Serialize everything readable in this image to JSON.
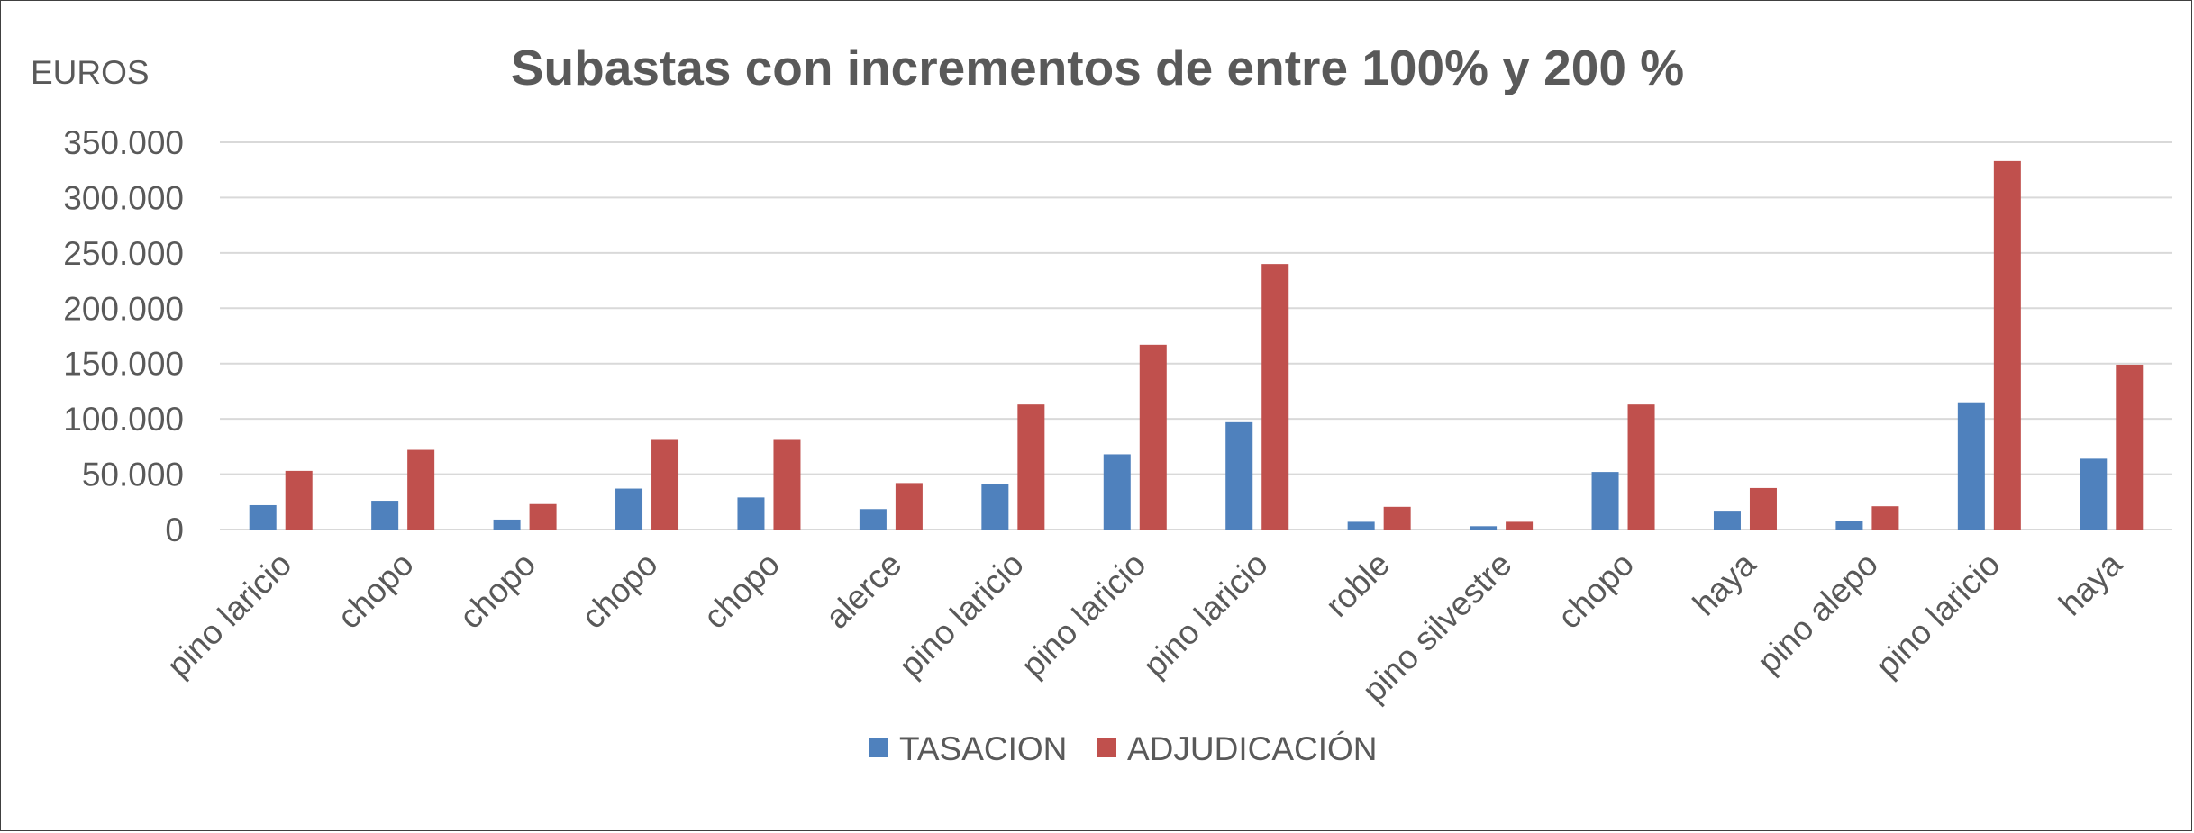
{
  "chart_data": {
    "type": "bar",
    "title": "Subastas con incrementos de entre 100% y 200 %",
    "unit_label": "EUROS",
    "xlabel": "",
    "ylabel": "",
    "ylim": [
      0,
      350000
    ],
    "yticks": [
      0,
      50000,
      100000,
      150000,
      200000,
      250000,
      300000,
      350000
    ],
    "ytick_labels": [
      "0",
      "50.000",
      "100.000",
      "150.000",
      "200.000",
      "250.000",
      "300.000",
      "350.000"
    ],
    "grid": true,
    "legend_position": "bottom",
    "categories": [
      "pino laricio",
      "chopo",
      "chopo",
      "chopo",
      "chopo",
      "alerce",
      "pino laricio",
      "pino laricio",
      "pino laricio",
      "roble",
      "pino silvestre",
      "chopo",
      "haya",
      "pino alepo",
      "pino laricio",
      "haya"
    ],
    "series": [
      {
        "name": "TASACION",
        "color": "#4f81bd",
        "values": [
          22000,
          26000,
          9000,
          37000,
          29000,
          18500,
          41000,
          68000,
          97000,
          7000,
          3000,
          52000,
          17000,
          8000,
          115000,
          64000
        ]
      },
      {
        "name": "ADJUDICACIÓN",
        "color": "#c0504d",
        "values": [
          53000,
          72000,
          23000,
          81000,
          81000,
          42000,
          113000,
          167000,
          240000,
          20500,
          7000,
          113000,
          37500,
          21000,
          333000,
          149000
        ]
      }
    ]
  }
}
